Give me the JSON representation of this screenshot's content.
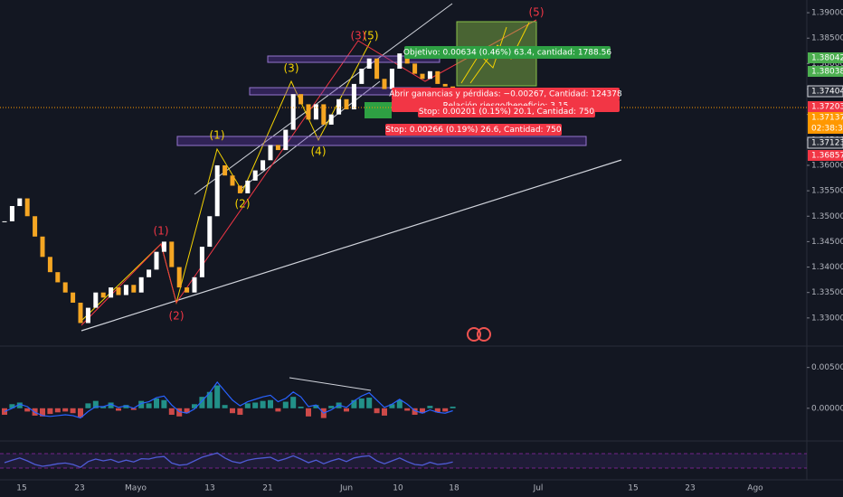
{
  "chart_data": {
    "type": "candlestick",
    "values": [
      1.349,
      1.352,
      1.3535,
      1.35,
      1.346,
      1.342,
      1.339,
      1.337,
      1.335,
      1.333,
      1.329,
      1.332,
      1.335,
      1.334,
      1.336,
      1.3345,
      1.3365,
      1.335,
      1.338,
      1.3395,
      1.343,
      1.345,
      1.34,
      1.336,
      1.335,
      1.338,
      1.344,
      1.35,
      1.36,
      1.358,
      1.356,
      1.3545,
      1.357,
      1.359,
      1.361,
      1.364,
      1.363,
      1.367,
      1.374,
      1.372,
      1.369,
      1.372,
      1.368,
      1.37,
      1.373,
      1.371,
      1.376,
      1.379,
      1.381,
      1.377,
      1.375,
      1.379,
      1.382,
      1.38,
      1.378,
      1.377,
      1.3785,
      1.376,
      1.3755,
      1.374
    ],
    "up_color": "#ffffff",
    "down_color": "#f5a623",
    "ylim": [
      1.325,
      1.3925
    ],
    "yticks": [
      {
        "value": 1.33,
        "label": "1.33000"
      },
      {
        "value": 1.335,
        "label": "1.33500"
      },
      {
        "value": 1.34,
        "label": "1.34000"
      },
      {
        "value": 1.345,
        "label": "1.34500"
      },
      {
        "value": 1.35,
        "label": "1.35000"
      },
      {
        "value": 1.355,
        "label": "1.35500"
      },
      {
        "value": 1.36,
        "label": "1.36000"
      },
      {
        "value": 1.365,
        "label": "1.36500"
      },
      {
        "value": 1.37,
        "label": "1.37000"
      },
      {
        "value": 1.375,
        "label": "1.37500"
      },
      {
        "value": 1.38,
        "label": "1.38000"
      },
      {
        "value": 1.385,
        "label": "1.38500"
      },
      {
        "value": 1.39,
        "label": "1.39000"
      }
    ],
    "price_tags": [
      {
        "value": 1.38042,
        "color": "#4caf50"
      },
      {
        "value": 1.38038,
        "color": "#4caf50"
      },
      {
        "value": 1.37404,
        "color": "#2a2e39"
      },
      {
        "value": 1.37203,
        "color": "#f23645"
      },
      {
        "value": 1.37137,
        "color": "#ff9800"
      },
      {
        "label": "02:38:36",
        "color": "#ff9800"
      },
      {
        "value": 1.37123,
        "color": "#2a2e39"
      },
      {
        "value": 1.36857,
        "color": "#f23645"
      }
    ],
    "x_labels": [
      "15",
      "23",
      "Mayo",
      "13",
      "21",
      "Jun",
      "10",
      "18",
      "Jul",
      "15",
      "23",
      "Ago"
    ],
    "waves": [
      {
        "label": "(1)",
        "color": "#f5d300"
      },
      {
        "label": "(2)",
        "color": "#f5d300"
      },
      {
        "label": "(3)",
        "color": "#f5d300"
      },
      {
        "label": "(4)",
        "color": "#f5d300"
      },
      {
        "label": "(5)",
        "color": "#f5d300"
      },
      {
        "label": "(1)",
        "color": "#f23645"
      },
      {
        "label": "(2)",
        "color": "#f23645"
      },
      {
        "label": "(3)",
        "color": "#f23645"
      },
      {
        "label": "(5)",
        "color": "#f23645"
      }
    ],
    "orders": [
      {
        "text": "Objetivo: 0.00634 (0.46%) 63.4, cantidad: 1788.56",
        "color": "#2ea043"
      },
      {
        "text": "Abrir ganancias y pérdidas: −0.00267, Cantidad: 124378",
        "color": "#f23645"
      },
      {
        "text": "Relación riesgo/beneficio: 3.15",
        "color": "#f23645"
      },
      {
        "text": "Stop: 0.00201 (0.15%) 20.1, Cantidad: 750",
        "color": "#f23645"
      },
      {
        "text": "Stop: 0.00266 (0.19%) 26.6, Cantidad: 750",
        "color": "#f23645"
      }
    ],
    "macd": {
      "ylim": [
        -0.0039,
        0.0074
      ],
      "yticks": [
        {
          "value": 0.005,
          "label": "0.00500"
        },
        {
          "value": 0,
          "label": "0.00000"
        }
      ],
      "histogram": [
        -0.0008,
        0.0005,
        0.0007,
        -0.0004,
        -0.0009,
        -0.001,
        -0.0007,
        -0.0005,
        -0.0004,
        -0.0006,
        -0.0011,
        0.0006,
        0.0009,
        0.0002,
        0.0007,
        -0.0003,
        0.0004,
        -0.0002,
        0.0009,
        0.0006,
        0.0012,
        0.001,
        -0.0008,
        -0.001,
        -0.0006,
        0.0005,
        0.0014,
        0.002,
        0.0028,
        0.0004,
        -0.0006,
        -0.0008,
        0.0006,
        0.0007,
        0.0009,
        0.001,
        -0.0004,
        0.0008,
        0.0014,
        0.0002,
        -0.001,
        0.0004,
        -0.0012,
        0.0003,
        0.0007,
        -0.0004,
        0.001,
        0.0012,
        0.0013,
        -0.0006,
        -0.0009,
        0.0005,
        0.001,
        -0.0003,
        -0.0008,
        -0.0006,
        0.0003,
        -0.0005,
        -0.0004,
        0.0002
      ],
      "line": [
        -0.0004,
        0,
        0.0005,
        0.0002,
        -0.0005,
        -0.0009,
        -0.001,
        -0.0009,
        -0.0008,
        -0.0009,
        -0.0012,
        -0.0004,
        0.0002,
        0.0002,
        0.0005,
        0.0001,
        0.0003,
        0,
        0.0006,
        0.0008,
        0.0013,
        0.0015,
        0.0004,
        -0.0004,
        -0.0006,
        -0.0001,
        0.0009,
        0.0019,
        0.0032,
        0.0021,
        0.001,
        0.0003,
        0.0008,
        0.0011,
        0.0014,
        0.0016,
        0.0008,
        0.0012,
        0.002,
        0.0014,
        0.0002,
        0.0004,
        -0.0006,
        -0.0002,
        0.0004,
        0.0001,
        0.0009,
        0.0015,
        0.0019,
        0.001,
        0.0001,
        0.0005,
        0.0011,
        0.0005,
        -0.0003,
        -0.0006,
        -0.0002,
        -0.0005,
        -0.0006,
        -0.0003
      ],
      "up_color": "#26a69a",
      "down_color": "#ef5350",
      "line_color": "#2962ff"
    },
    "rsi": {
      "ylim": [
        0,
        100
      ],
      "bands": [
        30,
        70
      ],
      "color": "#4f5bd5",
      "values": [
        45,
        52,
        58,
        50,
        40,
        35,
        38,
        42,
        44,
        40,
        32,
        48,
        55,
        50,
        54,
        46,
        52,
        47,
        56,
        55,
        60,
        62,
        44,
        38,
        40,
        50,
        60,
        66,
        72,
        58,
        48,
        44,
        52,
        56,
        58,
        60,
        50,
        56,
        64,
        55,
        45,
        52,
        42,
        50,
        56,
        48,
        58,
        62,
        64,
        50,
        42,
        50,
        58,
        48,
        40,
        38,
        46,
        40,
        42,
        47
      ]
    }
  }
}
